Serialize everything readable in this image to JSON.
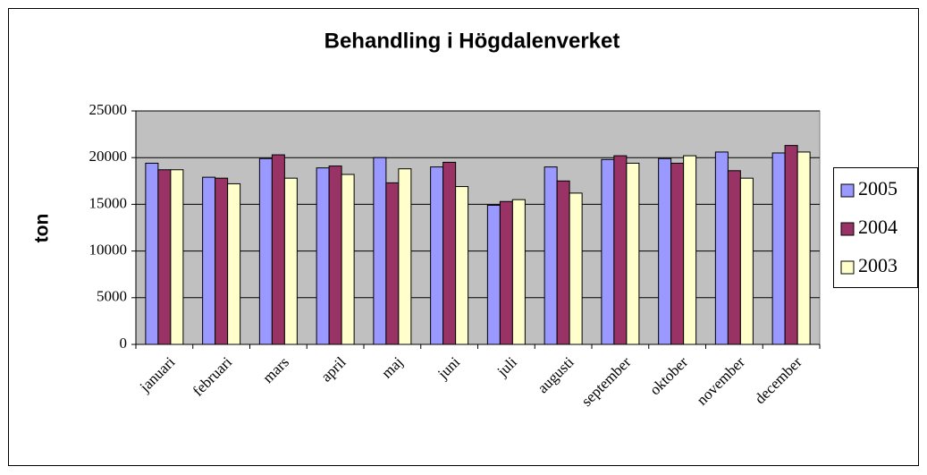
{
  "chart_data": {
    "type": "bar",
    "title": "Behandling i Högdalenverket",
    "ylabel": "ton",
    "categories": [
      "januari",
      "februari",
      "mars",
      "april",
      "maj",
      "juni",
      "juli",
      "augusti",
      "september",
      "oktober",
      "november",
      "december"
    ],
    "series": [
      {
        "name": "2005",
        "color": "#9999ff",
        "values": [
          19400,
          17900,
          19900,
          18900,
          20000,
          19000,
          14900,
          19000,
          19800,
          19900,
          20600,
          20500
        ]
      },
      {
        "name": "2004",
        "color": "#993366",
        "values": [
          18700,
          17800,
          20300,
          19100,
          17300,
          19500,
          15300,
          17500,
          20200,
          19400,
          18600,
          21300
        ]
      },
      {
        "name": "2003",
        "color": "#ffffcc",
        "values": [
          18700,
          17200,
          17800,
          18200,
          18800,
          16900,
          15500,
          16200,
          19400,
          20200,
          17800,
          20600
        ]
      }
    ],
    "ylim": [
      0,
      25000
    ],
    "yticks": [
      0,
      5000,
      10000,
      15000,
      20000,
      25000
    ],
    "grid": true,
    "legend": "right"
  }
}
